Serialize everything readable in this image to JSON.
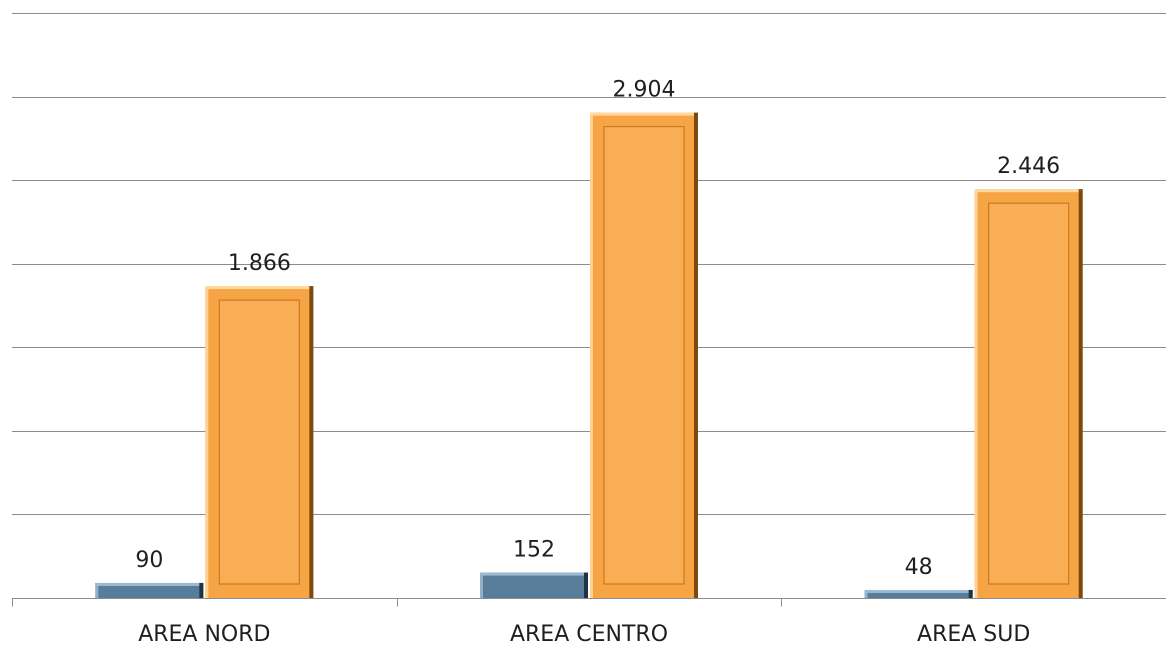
{
  "chart_data": {
    "type": "bar",
    "categories": [
      "AREA NORD",
      "AREA CENTRO",
      "AREA SUD"
    ],
    "series": [
      {
        "values": [
          90,
          152,
          48
        ],
        "color": "#4f7391"
      },
      {
        "values": [
          1866,
          2904,
          2446
        ],
        "color": "#f9ae55"
      }
    ],
    "data_labels": [
      [
        "90",
        "152",
        "48"
      ],
      [
        "1.866",
        "2.904",
        "2.446"
      ]
    ],
    "ylim": [
      0,
      3500
    ],
    "gridlines": true,
    "legend": "none",
    "xlabel": "",
    "ylabel": ""
  }
}
